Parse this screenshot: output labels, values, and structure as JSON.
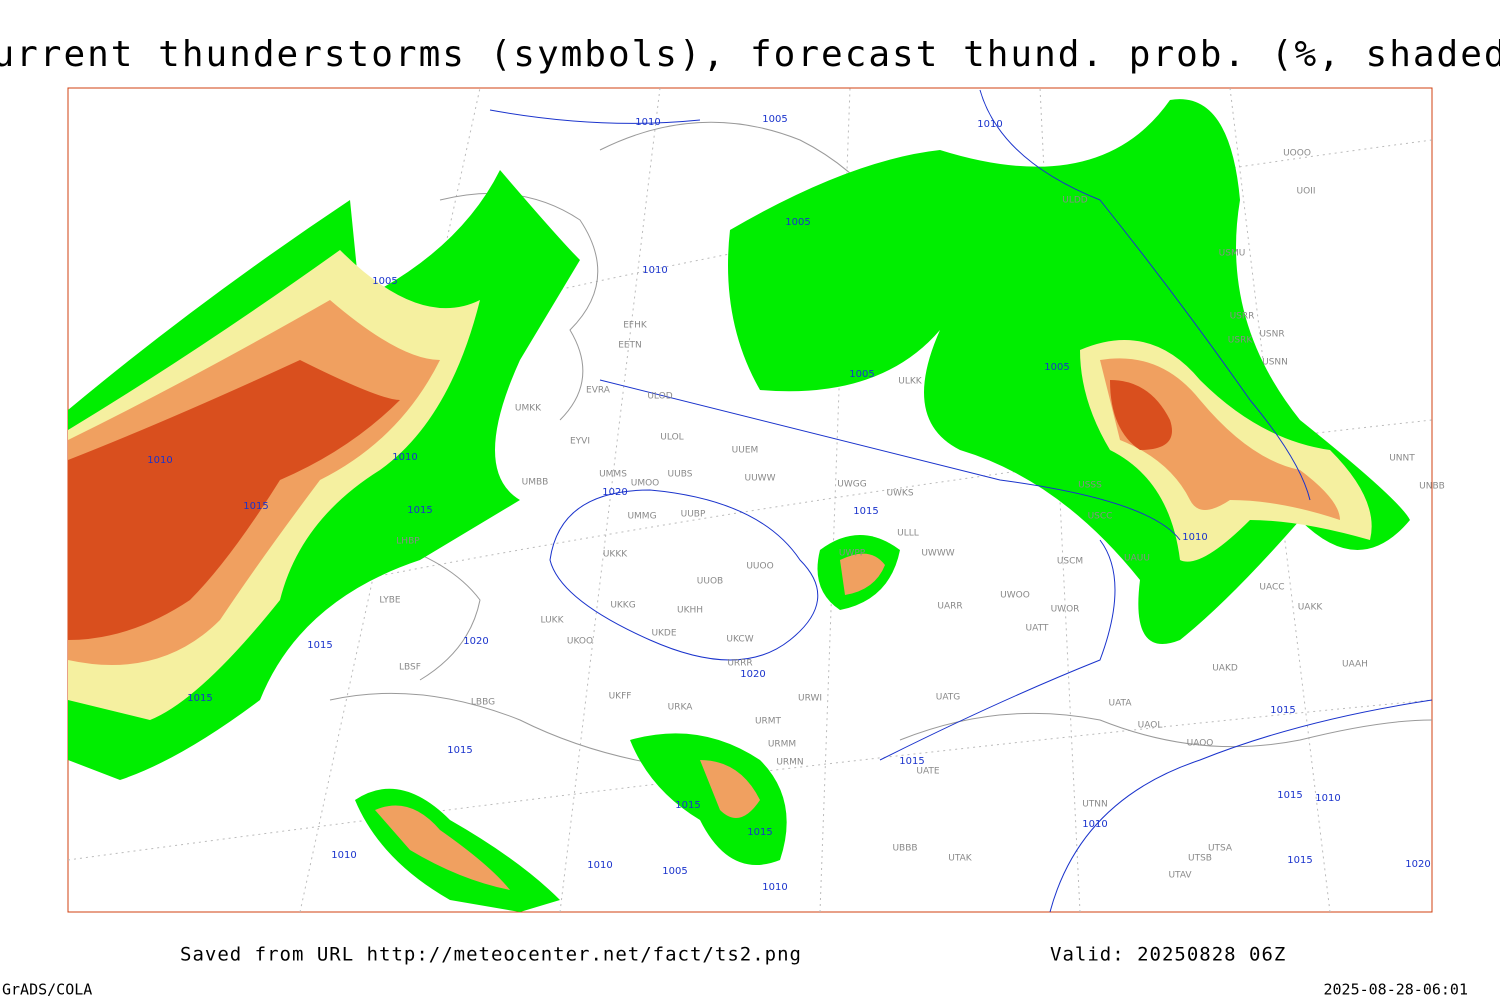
{
  "header": {
    "title": "Current thunderstorms (symbols), forecast thund. prob. (%, shaded)"
  },
  "map": {
    "stations": [
      "UMKK",
      "ULOD",
      "ULOL",
      "UUEM",
      "UMMS",
      "UUBS",
      "UUWW",
      "UMOO",
      "UMBB",
      "UMMG",
      "UUBP",
      "UKKK",
      "UUOO",
      "UUOB",
      "UKKG",
      "UKHH",
      "LUKK",
      "UKOO",
      "UKDE",
      "UKCW",
      "URRR",
      "UKFF",
      "URKA",
      "URWI",
      "URMT",
      "URMM",
      "URMN",
      "UWGG",
      "UWKS",
      "UWPP",
      "UWWW",
      "UARR",
      "UWOO",
      "UWOR",
      "UATT",
      "USCM",
      "USSS",
      "USCC",
      "UAUU",
      "UACC",
      "UAKK",
      "UAKD",
      "UAAH",
      "UATG",
      "UATA",
      "UAOL",
      "UAOO",
      "UATE",
      "UTNN",
      "UTAK",
      "UBBB",
      "UTSA",
      "UTSB",
      "UTAV",
      "ULLL",
      "ULKK",
      "USRR",
      "USNN",
      "USRK",
      "USNR",
      "USMU",
      "UNNT",
      "UNBB",
      "UOOO",
      "UOII",
      "ULDD",
      "LHBP",
      "LYBE",
      "LBSF",
      "LBBG",
      "EFHK",
      "EETN",
      "EVRA",
      "EYVI"
    ],
    "isobar_labels": [
      "1010",
      "1005",
      "1010",
      "1005",
      "1010",
      "1005",
      "1005",
      "1005",
      "1010",
      "1010",
      "1015",
      "1015",
      "1020",
      "1015",
      "1010",
      "1020",
      "1015",
      "1020",
      "1015",
      "1015",
      "1015",
      "1015",
      "1015",
      "1015",
      "1010",
      "1010",
      "1010",
      "1005",
      "1010",
      "1015",
      "1020",
      "1015",
      "1010"
    ]
  },
  "footer": {
    "saved": "Saved from URL http://meteocenter.net/fact/ts2.png",
    "valid": "Valid: 20250828 06Z",
    "software": "GrADS/COLA",
    "timestamp": "2025-08-28-06:01"
  }
}
